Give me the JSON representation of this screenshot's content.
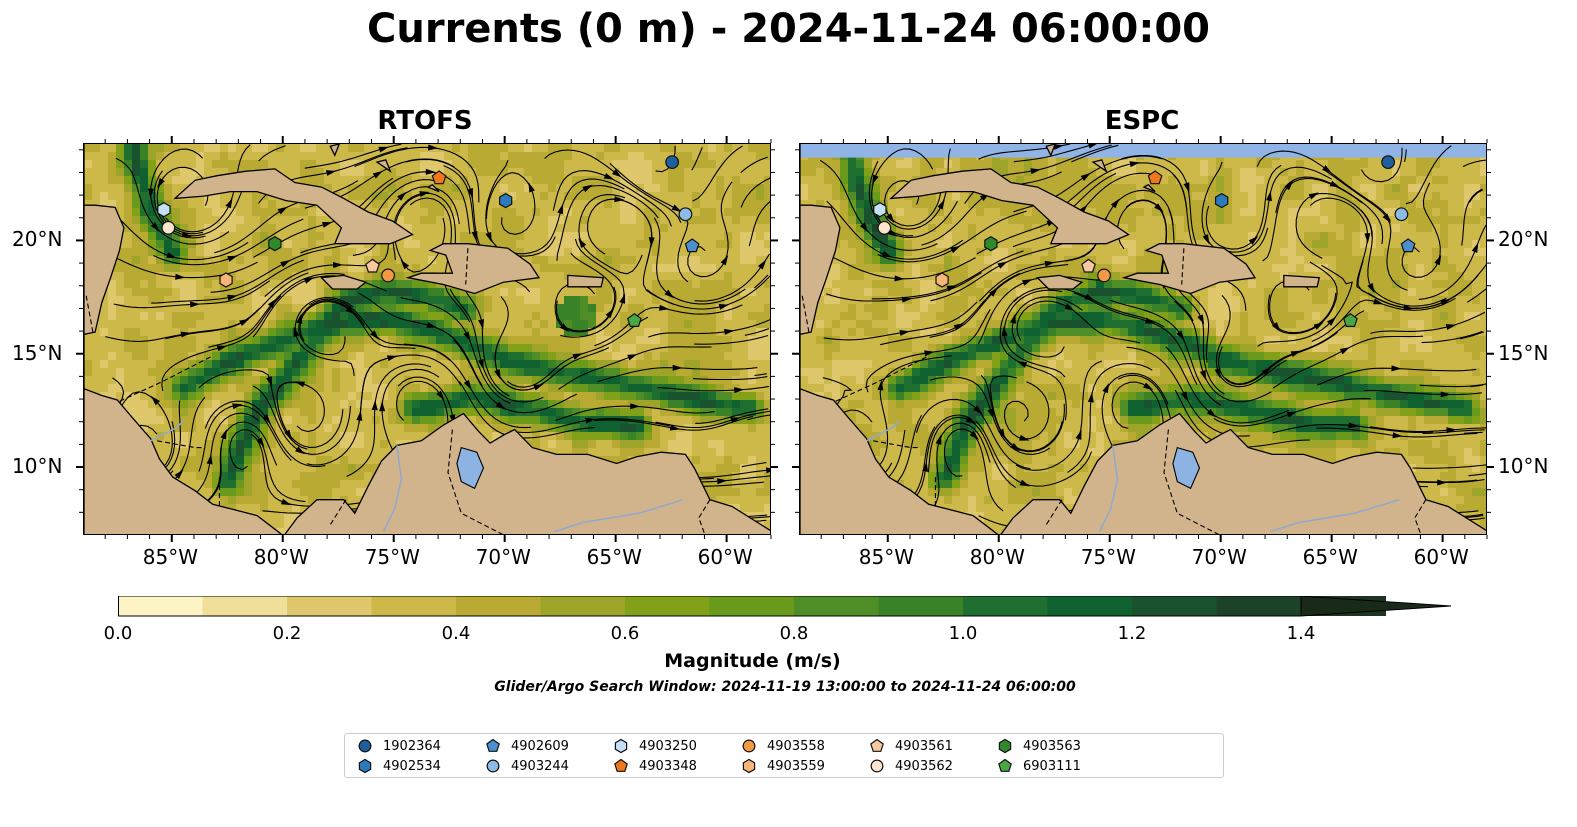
{
  "title": "Currents (0 m) - 2024-11-24 06:00:00",
  "panels": [
    {
      "title": "RTOFS"
    },
    {
      "title": "ESPC"
    }
  ],
  "axes": {
    "lat_labels": [
      "20°N",
      "15°N",
      "10°N"
    ],
    "lon_labels": [
      "85°W",
      "80°W",
      "75°W",
      "70°W",
      "65°W",
      "60°W"
    ]
  },
  "colorbar": {
    "label": "Magnitude (m/s)",
    "tick_labels": [
      "0.0",
      "0.2",
      "0.4",
      "0.6",
      "0.8",
      "1.0",
      "1.2",
      "1.4"
    ],
    "min": 0.0,
    "max": 1.5,
    "extend": "max",
    "colors": [
      "#fcf4c4",
      "#efdf98",
      "#dfc86c",
      "#cdb84a",
      "#b8aa33",
      "#9ea42a",
      "#82a018",
      "#6a9a1c",
      "#4f8e26",
      "#3a8228",
      "#1f7030",
      "#0f6230",
      "#1a5230",
      "#1d4228",
      "#1c3520",
      "#1a2a18"
    ]
  },
  "search_window": "Glider/Argo Search Window: 2024-11-19 13:00:00 to 2024-11-24 06:00:00",
  "colors": {
    "land": "#d2b48c",
    "lake": "#8cb3e2",
    "ocean_no_data": "#90b4e6"
  },
  "legend": [
    {
      "id": "1902364",
      "marker": "circle",
      "color": "#1f5f9e"
    },
    {
      "id": "4902534",
      "marker": "hexagon",
      "color": "#2c7bbd"
    },
    {
      "id": "4902609",
      "marker": "pentagon",
      "color": "#4a90d0"
    },
    {
      "id": "4903244",
      "marker": "circle",
      "color": "#8bbce5"
    },
    {
      "id": "4903250",
      "marker": "hexagon",
      "color": "#c4e0f6"
    },
    {
      "id": "4903348",
      "marker": "pentagon",
      "color": "#f07818"
    },
    {
      "id": "4903558",
      "marker": "circle",
      "color": "#f39a43"
    },
    {
      "id": "4903559",
      "marker": "hexagon",
      "color": "#f7b57a"
    },
    {
      "id": "4903561",
      "marker": "pentagon",
      "color": "#f8c9a1"
    },
    {
      "id": "4903562",
      "marker": "circle",
      "color": "#fde4cd"
    },
    {
      "id": "4903563",
      "marker": "hexagon",
      "color": "#2f8a2a"
    },
    {
      "id": "6903111",
      "marker": "pentagon",
      "color": "#49a844"
    }
  ],
  "map_markers": [
    {
      "id": "1902364",
      "lon": -62.5,
      "lat": 23.5
    },
    {
      "id": "4902534",
      "lon": -70.0,
      "lat": 21.8
    },
    {
      "id": "4902609",
      "lon": -61.6,
      "lat": 19.8
    },
    {
      "id": "4903244",
      "lon": -61.9,
      "lat": 21.2
    },
    {
      "id": "4903250",
      "lon": -85.4,
      "lat": 21.4
    },
    {
      "id": "4903348",
      "lon": -73.0,
      "lat": 22.8
    },
    {
      "id": "4903558",
      "lon": -75.3,
      "lat": 18.5
    },
    {
      "id": "4903559",
      "lon": -82.6,
      "lat": 18.3
    },
    {
      "id": "4903561",
      "lon": -76.0,
      "lat": 18.9
    },
    {
      "id": "4903562",
      "lon": -85.2,
      "lat": 20.6
    },
    {
      "id": "4903563",
      "lon": -80.4,
      "lat": 19.9
    },
    {
      "id": "6903111",
      "lon": -64.2,
      "lat": 16.5
    }
  ]
}
